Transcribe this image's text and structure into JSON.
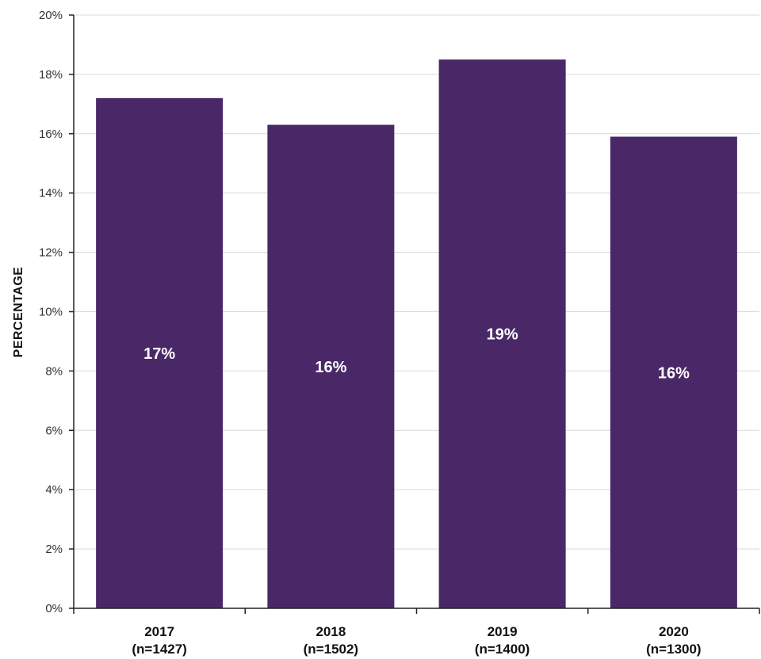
{
  "chart_data": {
    "type": "bar",
    "categories": [
      "2017",
      "2018",
      "2019",
      "2020"
    ],
    "category_sublabels": [
      "(n=1427)",
      "(n=1502)",
      "(n=1400)",
      "(n=1300)"
    ],
    "values": [
      17.2,
      16.3,
      18.5,
      15.9
    ],
    "data_labels": [
      "17%",
      "16%",
      "19%",
      "16%"
    ],
    "title": "",
    "xlabel": "",
    "ylabel": "PERCENTAGE",
    "ylim": [
      0,
      20
    ],
    "y_ticks": [
      0,
      2,
      4,
      6,
      8,
      10,
      12,
      14,
      16,
      18,
      20
    ],
    "y_tick_suffix": "%",
    "grid": true,
    "legend": "none",
    "bar_color": "#4a2868"
  }
}
